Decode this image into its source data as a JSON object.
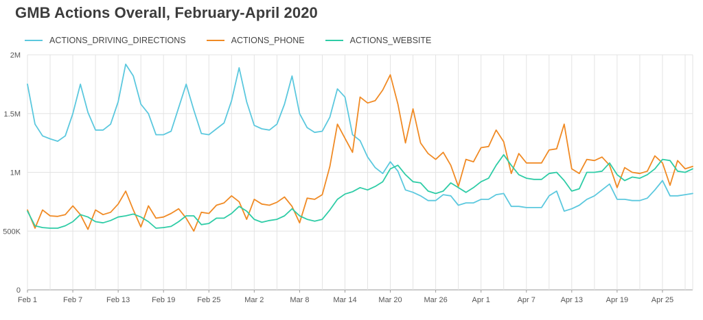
{
  "chart_data": {
    "type": "line",
    "title": "GMB Actions Overall, February-April 2020",
    "xlabel": "",
    "ylabel": "",
    "ylim": [
      0,
      2000000
    ],
    "y_ticks": [
      {
        "value": 0,
        "label": "0"
      },
      {
        "value": 500000,
        "label": "500K"
      },
      {
        "value": 1000000,
        "label": "1M"
      },
      {
        "value": 1500000,
        "label": "1.5M"
      },
      {
        "value": 2000000,
        "label": "2M"
      }
    ],
    "x_ticks": [
      {
        "index": 0,
        "label": "Feb 1"
      },
      {
        "index": 6,
        "label": "Feb 7"
      },
      {
        "index": 12,
        "label": "Feb 13"
      },
      {
        "index": 18,
        "label": "Feb 19"
      },
      {
        "index": 24,
        "label": "Feb 25"
      },
      {
        "index": 30,
        "label": "Mar 2"
      },
      {
        "index": 36,
        "label": "Mar 8"
      },
      {
        "index": 42,
        "label": "Mar 14"
      },
      {
        "index": 48,
        "label": "Mar 20"
      },
      {
        "index": 54,
        "label": "Mar 26"
      },
      {
        "index": 60,
        "label": "Apr 1"
      },
      {
        "index": 66,
        "label": "Apr 7"
      },
      {
        "index": 72,
        "label": "Apr 13"
      },
      {
        "index": 78,
        "label": "Apr 19"
      },
      {
        "index": 84,
        "label": "Apr 25"
      }
    ],
    "x_start": "Feb 1",
    "x_end": "Apr 30",
    "grid": true,
    "legend_position": "top-left",
    "series": [
      {
        "name": "ACTIONS_DRIVING_DIRECTIONS",
        "color": "#5bc8de",
        "values": [
          1750000,
          1410000,
          1310000,
          1285000,
          1265000,
          1310000,
          1500000,
          1750000,
          1510000,
          1360000,
          1360000,
          1410000,
          1600000,
          1920000,
          1820000,
          1580000,
          1500000,
          1320000,
          1320000,
          1350000,
          1550000,
          1750000,
          1530000,
          1330000,
          1320000,
          1370000,
          1420000,
          1610000,
          1890000,
          1600000,
          1400000,
          1370000,
          1360000,
          1410000,
          1580000,
          1820000,
          1500000,
          1380000,
          1340000,
          1350000,
          1470000,
          1710000,
          1640000,
          1320000,
          1270000,
          1130000,
          1040000,
          990000,
          1090000,
          1010000,
          850000,
          830000,
          800000,
          760000,
          760000,
          810000,
          800000,
          720000,
          740000,
          740000,
          770000,
          770000,
          810000,
          820000,
          710000,
          710000,
          700000,
          700000,
          700000,
          800000,
          840000,
          670000,
          690000,
          720000,
          770000,
          800000,
          850000,
          900000,
          770000,
          770000,
          760000,
          760000,
          780000,
          850000,
          930000,
          800000,
          800000,
          810000,
          820000
        ],
        "peak_note": ""
      },
      {
        "name": "ACTIONS_PHONE",
        "color": "#f08a24",
        "values": [
          680000,
          525000,
          680000,
          630000,
          625000,
          640000,
          715000,
          640000,
          515000,
          680000,
          640000,
          660000,
          730000,
          840000,
          680000,
          535000,
          715000,
          610000,
          620000,
          650000,
          690000,
          610000,
          500000,
          660000,
          650000,
          720000,
          740000,
          800000,
          750000,
          600000,
          770000,
          730000,
          720000,
          745000,
          790000,
          710000,
          570000,
          780000,
          770000,
          810000,
          1050000,
          1410000,
          1290000,
          1170000,
          1640000,
          1590000,
          1610000,
          1700000,
          1830000,
          1580000,
          1250000,
          1540000,
          1250000,
          1160000,
          1110000,
          1170000,
          1060000,
          880000,
          1110000,
          1090000,
          1210000,
          1220000,
          1360000,
          1260000,
          990000,
          1160000,
          1080000,
          1080000,
          1080000,
          1190000,
          1200000,
          1410000,
          1030000,
          990000,
          1110000,
          1100000,
          1130000,
          1060000,
          870000,
          1040000,
          1000000,
          990000,
          1010000,
          1140000,
          1080000,
          890000,
          1100000,
          1030000,
          1050000
        ]
      },
      {
        "name": "ACTIONS_WEBSITE",
        "color": "#2ecca6",
        "values": [
          670000,
          545000,
          530000,
          525000,
          525000,
          545000,
          580000,
          640000,
          620000,
          580000,
          570000,
          590000,
          620000,
          630000,
          645000,
          620000,
          580000,
          525000,
          530000,
          540000,
          580000,
          630000,
          630000,
          555000,
          565000,
          610000,
          610000,
          650000,
          710000,
          670000,
          600000,
          575000,
          590000,
          600000,
          630000,
          690000,
          630000,
          600000,
          585000,
          600000,
          680000,
          770000,
          815000,
          835000,
          870000,
          850000,
          880000,
          920000,
          1030000,
          1060000,
          980000,
          920000,
          910000,
          840000,
          820000,
          840000,
          910000,
          870000,
          830000,
          870000,
          920000,
          950000,
          1060000,
          1150000,
          1060000,
          980000,
          950000,
          940000,
          940000,
          990000,
          1000000,
          930000,
          840000,
          860000,
          1000000,
          1000000,
          1010000,
          1080000,
          980000,
          930000,
          960000,
          950000,
          980000,
          1030000,
          1110000,
          1100000,
          1010000,
          1000000,
          1030000
        ]
      }
    ]
  }
}
